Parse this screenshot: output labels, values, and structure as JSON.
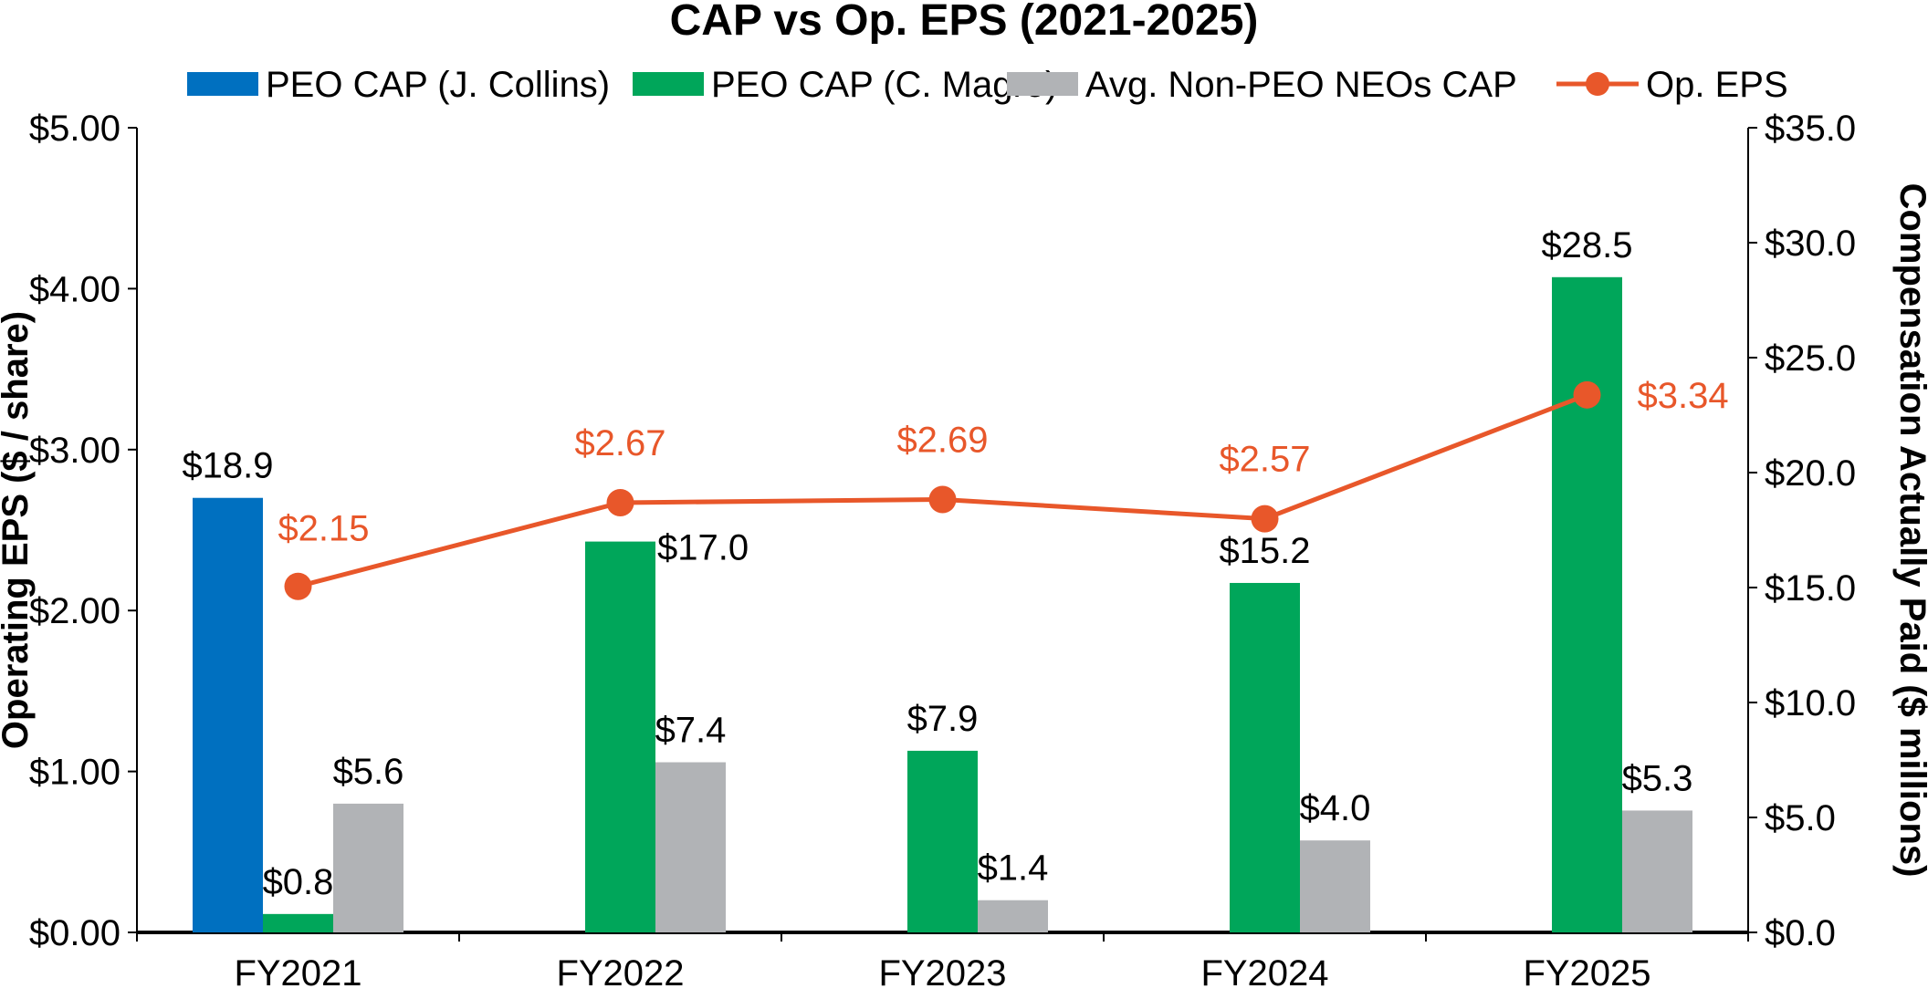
{
  "chart_data": {
    "type": "bar",
    "title": "CAP vs Op. EPS (2021-2025)",
    "categories": [
      "FY2021",
      "FY2022",
      "FY2023",
      "FY2024",
      "FY2025"
    ],
    "series": [
      {
        "name": "PEO CAP (J. Collins)",
        "axis": "right",
        "kind": "bar",
        "color": "#0070C0",
        "values": [
          18.9,
          null,
          null,
          null,
          null
        ],
        "labels": [
          "$18.9",
          "",
          "",
          "",
          ""
        ]
      },
      {
        "name": "PEO CAP (C. Magro)",
        "axis": "right",
        "kind": "bar",
        "color": "#00A65A",
        "values": [
          0.8,
          17.0,
          7.9,
          15.2,
          28.5
        ],
        "labels": [
          "$0.8",
          "$17.0",
          "$7.9",
          "$15.2",
          "$28.5"
        ]
      },
      {
        "name": "Avg. Non-PEO NEOs CAP",
        "axis": "right",
        "kind": "bar",
        "color": "#B1B3B6",
        "values": [
          5.6,
          7.4,
          1.4,
          4.0,
          5.3
        ],
        "labels": [
          "$5.6",
          "$7.4",
          "$1.4",
          "$4.0",
          "$5.3"
        ]
      },
      {
        "name": "Op. EPS",
        "axis": "left",
        "kind": "line",
        "color": "#E8572A",
        "values": [
          2.15,
          2.67,
          2.69,
          2.57,
          3.34
        ],
        "labels": [
          "$2.15",
          "$2.67",
          "$2.69",
          "$2.57",
          "$3.34"
        ]
      }
    ],
    "left_axis": {
      "label": "Operating EPS ($ / share)",
      "ylim": [
        0,
        5
      ],
      "ticks": [
        0,
        1,
        2,
        3,
        4,
        5
      ],
      "tick_labels": [
        "$0.00",
        "$1.00",
        "$2.00",
        "$3.00",
        "$4.00",
        "$5.00"
      ]
    },
    "right_axis": {
      "label": "Compensation Actually Paid ($ millions)",
      "ylim": [
        0,
        35
      ],
      "ticks": [
        0,
        5,
        10,
        15,
        20,
        25,
        30,
        35
      ],
      "tick_labels": [
        "$0.0",
        "$5.0",
        "$10.0",
        "$15.0",
        "$20.0",
        "$25.0",
        "$30.0",
        "$35.0"
      ]
    },
    "grid": false,
    "legend_position": "top"
  }
}
